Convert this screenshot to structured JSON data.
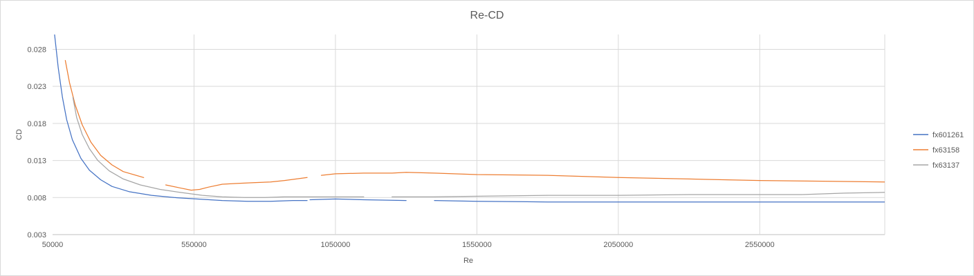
{
  "chart_data": {
    "type": "line",
    "title": "Re-CD",
    "xlabel": "Re",
    "ylabel": "CD",
    "xlim": [
      50000,
      2992000
    ],
    "ylim": [
      0.003,
      0.03
    ],
    "xticks": [
      50000,
      550000,
      1050000,
      1550000,
      2050000,
      2550000
    ],
    "yticks": [
      0.003,
      0.008,
      0.013,
      0.018,
      0.023,
      0.028
    ],
    "ytick_labels": [
      "0.003",
      "0.008",
      "0.013",
      "0.018",
      "0.023",
      "0.028"
    ],
    "grid": true,
    "legend_position": "right",
    "series": [
      {
        "name": "fx601261",
        "color": "#4472C4",
        "segments": [
          [
            [
              57000,
              0.03
            ],
            [
              70000,
              0.0255
            ],
            [
              85000,
              0.0215
            ],
            [
              100000,
              0.0185
            ],
            [
              120000,
              0.0158
            ],
            [
              150000,
              0.0133
            ],
            [
              180000,
              0.0117
            ],
            [
              220000,
              0.0104
            ],
            [
              260000,
              0.0095
            ],
            [
              320000,
              0.0088
            ],
            [
              400000,
              0.0083
            ],
            [
              480000,
              0.008
            ],
            [
              560000,
              0.0078
            ],
            [
              650000,
              0.0076
            ],
            [
              740000,
              0.0075
            ],
            [
              820000,
              0.0075
            ],
            [
              900000,
              0.0076
            ],
            [
              950000,
              0.0076
            ]
          ],
          [
            [
              960000,
              0.0077
            ],
            [
              1050000,
              0.0078
            ],
            [
              1150000,
              0.0077
            ],
            [
              1300000,
              0.0076
            ]
          ],
          [
            [
              1400000,
              0.0076
            ],
            [
              1550000,
              0.0075
            ],
            [
              1800000,
              0.0074
            ],
            [
              2050000,
              0.0074
            ],
            [
              2300000,
              0.0074
            ],
            [
              2550000,
              0.0074
            ],
            [
              2800000,
              0.0074
            ],
            [
              2992000,
              0.0074
            ]
          ]
        ]
      },
      {
        "name": "fx63158",
        "color": "#ED7D31",
        "segments": [
          [
            [
              95000,
              0.0265
            ],
            [
              110000,
              0.0235
            ],
            [
              130000,
              0.0205
            ],
            [
              155000,
              0.0178
            ],
            [
              185000,
              0.0155
            ],
            [
              220000,
              0.0137
            ],
            [
              260000,
              0.0124
            ],
            [
              300000,
              0.0115
            ],
            [
              372000,
              0.0107
            ]
          ],
          [
            [
              450000,
              0.0097
            ],
            [
              500000,
              0.0093
            ],
            [
              540000,
              0.009
            ],
            [
              570000,
              0.0091
            ],
            [
              600000,
              0.0094
            ],
            [
              650000,
              0.0098
            ],
            [
              700000,
              0.0099
            ],
            [
              760000,
              0.01
            ],
            [
              820000,
              0.0101
            ],
            [
              870000,
              0.0103
            ],
            [
              950000,
              0.0107
            ]
          ],
          [
            [
              1000000,
              0.011
            ],
            [
              1050000,
              0.0112
            ],
            [
              1150000,
              0.0113
            ],
            [
              1250000,
              0.0113
            ],
            [
              1300000,
              0.0114
            ],
            [
              1400000,
              0.0113
            ],
            [
              1550000,
              0.0111
            ],
            [
              1800000,
              0.011
            ],
            [
              2050000,
              0.0107
            ],
            [
              2300000,
              0.0105
            ],
            [
              2550000,
              0.0103
            ],
            [
              2800000,
              0.0102
            ],
            [
              2992000,
              0.0101
            ]
          ]
        ]
      },
      {
        "name": "fx63137",
        "color": "#A5A5A5",
        "segments": [
          [
            [
              122000,
              0.0215
            ],
            [
              135000,
              0.0188
            ],
            [
              155000,
              0.0165
            ],
            [
              180000,
              0.0146
            ],
            [
              210000,
              0.013
            ],
            [
              250000,
              0.0116
            ],
            [
              300000,
              0.0105
            ],
            [
              360000,
              0.0097
            ],
            [
              430000,
              0.0091
            ],
            [
              500000,
              0.0087
            ],
            [
              580000,
              0.0083
            ],
            [
              650000,
              0.0081
            ],
            [
              730000,
              0.008
            ],
            [
              800000,
              0.008
            ],
            [
              870000,
              0.0081
            ],
            [
              950000,
              0.0081
            ],
            [
              1150000,
              0.0081
            ]
          ],
          [
            [
              1250000,
              0.0081
            ],
            [
              1400000,
              0.0081
            ],
            [
              1600000,
              0.0082
            ],
            [
              1800000,
              0.0083
            ],
            [
              2050000,
              0.0083
            ],
            [
              2300000,
              0.0084
            ],
            [
              2550000,
              0.0084
            ],
            [
              2700000,
              0.0084
            ],
            [
              2850000,
              0.0086
            ],
            [
              2992000,
              0.0087
            ]
          ]
        ]
      }
    ]
  }
}
